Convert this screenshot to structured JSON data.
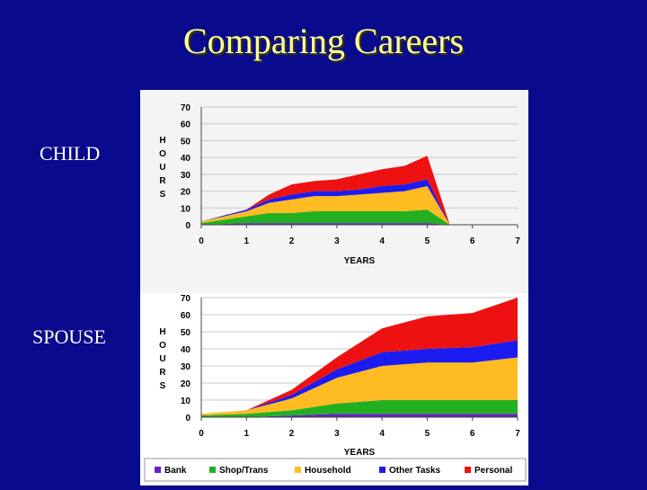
{
  "title": "Comparing Careers",
  "labels": {
    "child": "CHILD",
    "spouse": "SPOUSE"
  },
  "colors": {
    "Bank": "#6a1ec8",
    "Shop/Trans": "#22b022",
    "Household": "#ffbb22",
    "Other Tasks": "#1c1cf0",
    "Personal": "#ee1111"
  },
  "chart_data": [
    {
      "type": "area",
      "stacked": true,
      "title": "CHILD",
      "xlabel": "YEARS",
      "ylabel": "HOURS",
      "xlim": [
        0,
        7
      ],
      "ylim": [
        0,
        70
      ],
      "xticks": [
        0,
        1,
        2,
        3,
        4,
        5,
        6,
        7
      ],
      "yticks": [
        0,
        10,
        20,
        30,
        40,
        50,
        60,
        70
      ],
      "grid": true,
      "x": [
        0,
        1,
        1.5,
        2,
        2.5,
        3,
        3.5,
        4,
        4.5,
        5,
        5.5
      ],
      "series": [
        {
          "name": "Bank",
          "values": [
            0,
            1,
            1,
            1,
            1,
            1,
            1,
            1,
            1,
            1,
            0
          ]
        },
        {
          "name": "Shop/Trans",
          "values": [
            1,
            4,
            6,
            6,
            7,
            7,
            7,
            7,
            7,
            8,
            0
          ]
        },
        {
          "name": "Household",
          "values": [
            1,
            3,
            6,
            8,
            9,
            9,
            10,
            11,
            12,
            14,
            0
          ]
        },
        {
          "name": "Other Tasks",
          "values": [
            0,
            1,
            2,
            3,
            3,
            3,
            3,
            4,
            4,
            4,
            0
          ]
        },
        {
          "name": "Personal",
          "values": [
            0,
            0,
            3,
            6,
            6,
            7,
            9,
            10,
            11,
            14,
            0
          ]
        }
      ]
    },
    {
      "type": "area",
      "stacked": true,
      "title": "SPOUSE",
      "xlabel": "YEARS",
      "ylabel": "HOURS",
      "xlim": [
        0,
        7
      ],
      "ylim": [
        0,
        70
      ],
      "xticks": [
        0,
        1,
        2,
        3,
        4,
        5,
        6,
        7
      ],
      "yticks": [
        0,
        10,
        20,
        30,
        40,
        50,
        60,
        70
      ],
      "grid": true,
      "legend": "bottom",
      "x": [
        0,
        1,
        2,
        3,
        4,
        5,
        6,
        7
      ],
      "series": [
        {
          "name": "Bank",
          "values": [
            0,
            0,
            1,
            2,
            2,
            2,
            2,
            2
          ]
        },
        {
          "name": "Shop/Trans",
          "values": [
            1,
            2,
            3,
            6,
            8,
            8,
            8,
            8
          ]
        },
        {
          "name": "Household",
          "values": [
            1,
            2,
            7,
            15,
            20,
            22,
            22,
            25
          ]
        },
        {
          "name": "Other Tasks",
          "values": [
            0,
            0,
            2,
            5,
            8,
            8,
            9,
            10
          ]
        },
        {
          "name": "Personal",
          "values": [
            0,
            0,
            3,
            7,
            14,
            19,
            20,
            25
          ]
        }
      ]
    }
  ]
}
